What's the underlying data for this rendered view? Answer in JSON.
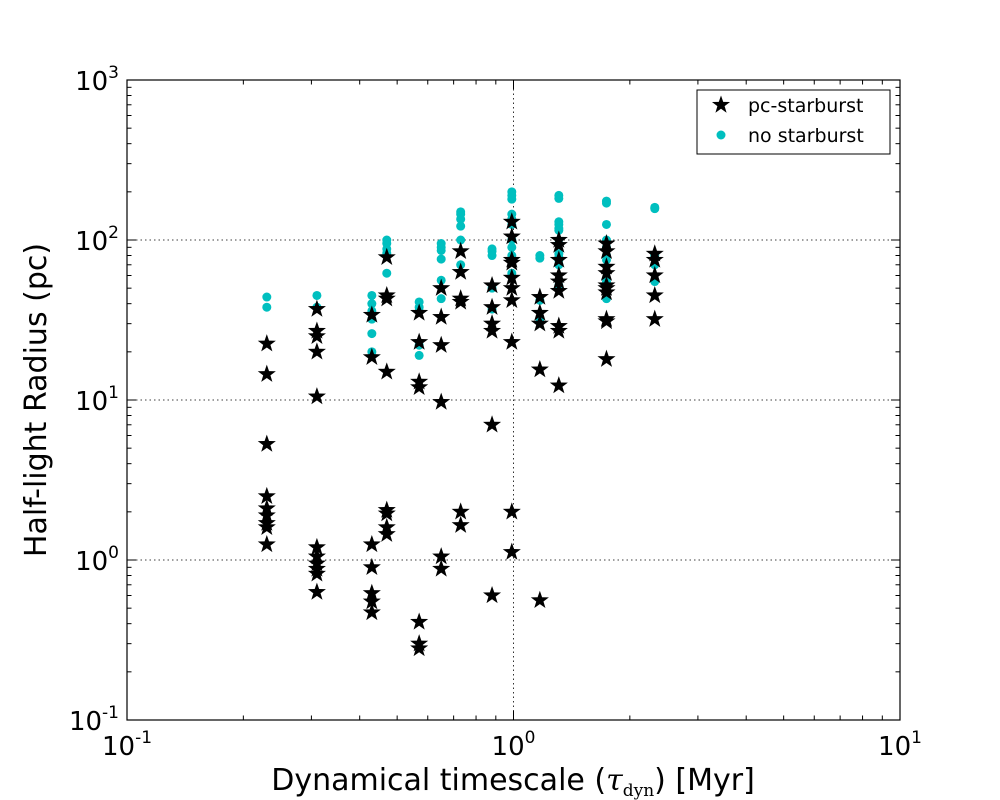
{
  "chart_data": {
    "type": "scatter",
    "xscale": "log",
    "yscale": "log",
    "xlim": [
      0.1,
      10
    ],
    "ylim": [
      0.1,
      1000
    ],
    "xlabel": "Dynamical timescale (τdyn) [Myr]",
    "xlabel_parts": {
      "before": "Dynamical timescale (",
      "tau": "τ",
      "sub": "dyn",
      "after": ") [Myr]"
    },
    "ylabel": "Half-light Radius (pc)",
    "x_tick_labels": [
      {
        "base": "10",
        "exp": "-1",
        "value": 0.1
      },
      {
        "base": "10",
        "exp": "0",
        "value": 1
      },
      {
        "base": "10",
        "exp": "1",
        "value": 10
      }
    ],
    "y_tick_labels": [
      {
        "base": "10",
        "exp": "-1",
        "value": 0.1
      },
      {
        "base": "10",
        "exp": "0",
        "value": 1
      },
      {
        "base": "10",
        "exp": "1",
        "value": 10
      },
      {
        "base": "10",
        "exp": "2",
        "value": 100
      },
      {
        "base": "10",
        "exp": "3",
        "value": 1000
      }
    ],
    "grid": true,
    "legend_position": "top-right",
    "series": [
      {
        "name": "pc-starburst",
        "marker": "star",
        "color": "#000000",
        "points": [
          [
            0.23,
            22.5
          ],
          [
            0.23,
            14.5
          ],
          [
            0.23,
            5.3
          ],
          [
            0.23,
            2.5
          ],
          [
            0.23,
            2.1
          ],
          [
            0.23,
            1.9
          ],
          [
            0.23,
            1.7
          ],
          [
            0.23,
            1.6
          ],
          [
            0.23,
            1.25
          ],
          [
            0.31,
            37
          ],
          [
            0.31,
            27
          ],
          [
            0.31,
            25
          ],
          [
            0.31,
            20
          ],
          [
            0.31,
            10.5
          ],
          [
            0.31,
            1.2
          ],
          [
            0.31,
            1.05
          ],
          [
            0.31,
            0.95
          ],
          [
            0.31,
            0.88
          ],
          [
            0.31,
            0.82
          ],
          [
            0.31,
            0.63
          ],
          [
            0.43,
            34
          ],
          [
            0.43,
            18.5
          ],
          [
            0.43,
            1.25
          ],
          [
            0.43,
            0.9
          ],
          [
            0.43,
            0.62
          ],
          [
            0.43,
            0.55
          ],
          [
            0.43,
            0.47
          ],
          [
            0.47,
            78
          ],
          [
            0.47,
            45
          ],
          [
            0.47,
            43
          ],
          [
            0.47,
            15
          ],
          [
            0.47,
            2.05
          ],
          [
            0.47,
            1.95
          ],
          [
            0.47,
            1.6
          ],
          [
            0.47,
            1.45
          ],
          [
            0.57,
            35
          ],
          [
            0.57,
            23
          ],
          [
            0.57,
            13
          ],
          [
            0.57,
            12
          ],
          [
            0.57,
            0.41
          ],
          [
            0.57,
            0.3
          ],
          [
            0.57,
            0.28
          ],
          [
            0.65,
            50
          ],
          [
            0.65,
            33
          ],
          [
            0.65,
            22
          ],
          [
            0.65,
            9.7
          ],
          [
            0.65,
            1.05
          ],
          [
            0.65,
            0.88
          ],
          [
            0.73,
            85
          ],
          [
            0.73,
            63
          ],
          [
            0.73,
            43
          ],
          [
            0.73,
            41
          ],
          [
            0.73,
            2.0
          ],
          [
            0.73,
            1.65
          ],
          [
            0.88,
            52
          ],
          [
            0.88,
            38
          ],
          [
            0.88,
            30
          ],
          [
            0.88,
            27
          ],
          [
            0.88,
            7.0
          ],
          [
            0.88,
            0.6
          ],
          [
            0.99,
            130
          ],
          [
            0.99,
            105
          ],
          [
            0.99,
            75
          ],
          [
            0.99,
            72
          ],
          [
            0.99,
            58
          ],
          [
            0.99,
            50
          ],
          [
            0.99,
            42
          ],
          [
            0.99,
            23
          ],
          [
            0.99,
            2.0
          ],
          [
            0.99,
            1.12
          ],
          [
            1.17,
            44
          ],
          [
            1.17,
            35
          ],
          [
            1.17,
            30
          ],
          [
            1.17,
            15.5
          ],
          [
            1.17,
            0.56
          ],
          [
            1.31,
            100
          ],
          [
            1.31,
            93
          ],
          [
            1.31,
            75
          ],
          [
            1.31,
            60
          ],
          [
            1.31,
            55
          ],
          [
            1.31,
            48
          ],
          [
            1.31,
            29
          ],
          [
            1.31,
            27
          ],
          [
            1.31,
            12.3
          ],
          [
            1.74,
            95
          ],
          [
            1.74,
            85
          ],
          [
            1.74,
            68
          ],
          [
            1.74,
            62
          ],
          [
            1.74,
            52
          ],
          [
            1.74,
            50
          ],
          [
            1.74,
            47
          ],
          [
            1.74,
            32
          ],
          [
            1.74,
            31
          ],
          [
            1.74,
            18
          ],
          [
            2.32,
            82
          ],
          [
            2.32,
            75
          ],
          [
            2.32,
            60
          ],
          [
            2.32,
            45
          ],
          [
            2.32,
            32
          ]
        ]
      },
      {
        "name": "no starburst",
        "marker": "circle",
        "color": "#00bfbf",
        "points": [
          [
            0.23,
            44
          ],
          [
            0.23,
            38
          ],
          [
            0.31,
            45
          ],
          [
            0.31,
            38
          ],
          [
            0.43,
            45
          ],
          [
            0.43,
            40
          ],
          [
            0.43,
            36
          ],
          [
            0.43,
            32
          ],
          [
            0.43,
            26
          ],
          [
            0.43,
            20
          ],
          [
            0.47,
            100
          ],
          [
            0.47,
            95
          ],
          [
            0.47,
            88
          ],
          [
            0.47,
            83
          ],
          [
            0.47,
            62
          ],
          [
            0.57,
            41
          ],
          [
            0.57,
            38
          ],
          [
            0.57,
            36
          ],
          [
            0.57,
            22
          ],
          [
            0.57,
            19
          ],
          [
            0.65,
            95
          ],
          [
            0.65,
            90
          ],
          [
            0.65,
            86
          ],
          [
            0.65,
            76
          ],
          [
            0.65,
            56
          ],
          [
            0.65,
            43
          ],
          [
            0.73,
            150
          ],
          [
            0.73,
            145
          ],
          [
            0.73,
            135
          ],
          [
            0.73,
            122
          ],
          [
            0.73,
            100
          ],
          [
            0.73,
            70
          ],
          [
            0.88,
            88
          ],
          [
            0.88,
            85
          ],
          [
            0.88,
            80
          ],
          [
            0.88,
            50
          ],
          [
            0.88,
            37
          ],
          [
            0.99,
            200
          ],
          [
            0.99,
            190
          ],
          [
            0.99,
            180
          ],
          [
            0.99,
            145
          ],
          [
            0.99,
            135
          ],
          [
            0.99,
            125
          ],
          [
            0.99,
            100
          ],
          [
            0.99,
            90
          ],
          [
            0.99,
            80
          ],
          [
            0.99,
            62
          ],
          [
            1.17,
            80
          ],
          [
            1.17,
            77
          ],
          [
            1.17,
            42
          ],
          [
            1.17,
            32
          ],
          [
            1.31,
            190
          ],
          [
            1.31,
            182
          ],
          [
            1.31,
            130
          ],
          [
            1.31,
            125
          ],
          [
            1.31,
            118
          ],
          [
            1.31,
            115
          ],
          [
            1.31,
            95
          ],
          [
            1.31,
            82
          ],
          [
            1.31,
            78
          ],
          [
            1.31,
            75
          ],
          [
            1.31,
            70
          ],
          [
            1.31,
            52
          ],
          [
            1.74,
            175
          ],
          [
            1.74,
            170
          ],
          [
            1.74,
            125
          ],
          [
            1.74,
            100
          ],
          [
            1.74,
            90
          ],
          [
            1.74,
            80
          ],
          [
            1.74,
            75
          ],
          [
            1.74,
            55
          ],
          [
            1.74,
            50
          ],
          [
            1.74,
            43
          ],
          [
            2.32,
            160
          ],
          [
            2.32,
            157
          ],
          [
            2.32,
            80
          ],
          [
            2.32,
            70
          ],
          [
            2.32,
            55
          ]
        ]
      }
    ]
  }
}
